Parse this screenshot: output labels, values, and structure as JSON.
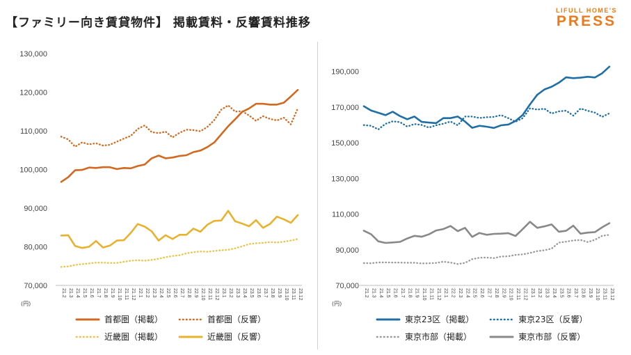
{
  "page": {
    "title": "【ファミリー向き賃貸物件】 掲載賃料・反響賃料推移",
    "logo_top": "LIFULL HOME'S",
    "logo_main": "PRESS",
    "accent": "#ec7a1c"
  },
  "chart_data": [
    {
      "type": "line",
      "unit_label": "(円)",
      "ylim": [
        70000,
        130000
      ],
      "yticks": [
        "70,000",
        "80,000",
        "90,000",
        "100,000",
        "110,000",
        "120,000",
        "130,000"
      ],
      "ytick_values": [
        70000,
        80000,
        90000,
        100000,
        110000,
        120000,
        130000
      ],
      "categories": [
        "21.2",
        "21.3",
        "21.4",
        "21.5",
        "21.6",
        "21.7",
        "21.8",
        "21.9",
        "21.10",
        "21.11",
        "21.12",
        "22.1",
        "22.2",
        "22.3",
        "22.4",
        "22.5",
        "22.6",
        "22.7",
        "22.8",
        "22.9",
        "22.10",
        "22.11",
        "22.12",
        "23.1",
        "23.2",
        "23.3",
        "23.4",
        "23.5",
        "23.6",
        "23.7",
        "23.8",
        "23.9",
        "23.10",
        "23.11",
        "23.12"
      ],
      "series": [
        {
          "name": "首都圏（掲載）",
          "color": "#d2691e",
          "style": "solid",
          "values": [
            96800,
            98000,
            99800,
            99900,
            100500,
            100400,
            100600,
            100600,
            100100,
            100400,
            100300,
            100900,
            101300,
            102900,
            103600,
            102900,
            103100,
            103500,
            103700,
            104500,
            104900,
            105800,
            107000,
            109100,
            111200,
            113000,
            114900,
            115800,
            117000,
            117000,
            116800,
            116800,
            117300,
            118900,
            120600
          ]
        },
        {
          "name": "首都圏（反響）",
          "color": "#d2691e",
          "style": "dotted",
          "values": [
            108500,
            107800,
            105900,
            107000,
            106500,
            106800,
            106200,
            106400,
            107200,
            108000,
            108700,
            110500,
            111400,
            109700,
            109400,
            109800,
            108300,
            109500,
            110300,
            110200,
            109900,
            111000,
            112800,
            115500,
            116600,
            115000,
            115100,
            114000,
            112600,
            113800,
            113100,
            112700,
            113400,
            111700,
            115800
          ]
        },
        {
          "name": "近畿圏（掲載）",
          "color": "#f0c040",
          "style": "dotted",
          "values": [
            74800,
            74900,
            75300,
            75500,
            75700,
            75900,
            75900,
            75800,
            75800,
            76100,
            76400,
            76500,
            76400,
            76600,
            76900,
            77300,
            77600,
            77800,
            78300,
            78600,
            78800,
            78700,
            78900,
            79100,
            79200,
            79600,
            80100,
            80700,
            80900,
            81000,
            81200,
            81100,
            81300,
            81600,
            82000
          ]
        },
        {
          "name": "近畿圏（反響）",
          "color": "#e8b22e",
          "style": "solid",
          "values": [
            82900,
            83000,
            80200,
            79700,
            80000,
            81500,
            79800,
            80300,
            81600,
            81700,
            83600,
            85900,
            85200,
            84000,
            81600,
            83000,
            82000,
            83100,
            83100,
            84700,
            83900,
            85700,
            86700,
            86800,
            89300,
            86600,
            86000,
            85300,
            86900,
            84900,
            85900,
            87800,
            87100,
            86200,
            88200
          ]
        }
      ]
    },
    {
      "type": "line",
      "unit_label": "(円)",
      "ylim": [
        70000,
        200000
      ],
      "yticks": [
        "70,000",
        "90,000",
        "110,000",
        "130,000",
        "150,000",
        "170,000",
        "190,000"
      ],
      "ytick_values": [
        70000,
        90000,
        110000,
        130000,
        150000,
        170000,
        190000
      ],
      "categories": [
        "21.2",
        "21.3",
        "21.4",
        "21.5",
        "21.6",
        "21.7",
        "21.8",
        "21.9",
        "21.10",
        "21.11",
        "21.12",
        "22.1",
        "22.2",
        "22.3",
        "22.4",
        "22.5",
        "22.6",
        "22.7",
        "22.8",
        "22.9",
        "22.10",
        "22.11",
        "22.12",
        "23.1",
        "23.2",
        "23.3",
        "23.4",
        "23.5",
        "23.6",
        "23.7",
        "23.8",
        "23.9",
        "23.10",
        "23.11",
        "23.12"
      ],
      "series": [
        {
          "name": "東京23区（掲載）",
          "color": "#1d6fa5",
          "style": "solid",
          "values": [
            170500,
            168100,
            166800,
            165500,
            167400,
            165000,
            163200,
            164700,
            161700,
            161300,
            161000,
            163800,
            163800,
            164700,
            161900,
            158400,
            159500,
            159000,
            158300,
            159800,
            160200,
            162200,
            165600,
            171500,
            176900,
            179900,
            181400,
            183700,
            186700,
            186200,
            186500,
            187000,
            186600,
            189000,
            192700
          ]
        },
        {
          "name": "東京23区（反響）",
          "color": "#1d6fa5",
          "style": "dotted",
          "values": [
            159900,
            159500,
            157500,
            160600,
            162000,
            161600,
            159100,
            160500,
            160000,
            158500,
            159800,
            160700,
            161900,
            159800,
            164700,
            164700,
            163900,
            164300,
            164500,
            165500,
            163800,
            161800,
            163800,
            169300,
            168600,
            169100,
            166400,
            167600,
            168000,
            165200,
            169200,
            167900,
            166900,
            164500,
            166500
          ]
        },
        {
          "name": "東京市部（掲載）",
          "color": "#999999",
          "style": "dotted",
          "values": [
            82500,
            82400,
            82900,
            82900,
            82800,
            82800,
            82700,
            82700,
            82300,
            82400,
            82600,
            83300,
            82800,
            82000,
            82600,
            84700,
            85500,
            85600,
            85300,
            86200,
            86300,
            87100,
            87400,
            88200,
            89200,
            89700,
            90600,
            94000,
            94500,
            95200,
            95500,
            94300,
            95600,
            97800,
            98400
          ]
        },
        {
          "name": "東京市部（反響）",
          "color": "#888888",
          "style": "solid",
          "values": [
            100700,
            98700,
            94700,
            93800,
            94100,
            94400,
            96300,
            97800,
            97300,
            98600,
            100800,
            101600,
            103300,
            100400,
            102300,
            97200,
            99400,
            98400,
            98900,
            99000,
            99300,
            97700,
            101600,
            105700,
            102300,
            103100,
            104200,
            100100,
            100600,
            103500,
            99000,
            99600,
            99900,
            102600,
            104900
          ]
        }
      ]
    }
  ]
}
